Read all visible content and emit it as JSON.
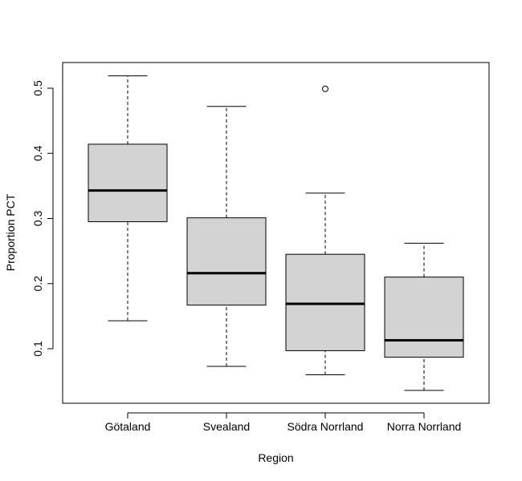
{
  "chart_data": {
    "type": "boxplot",
    "title": "",
    "xlabel": "Region",
    "ylabel": "Proportion PCT",
    "ylim": [
      0.02,
      0.53
    ],
    "y_ticks": [
      0.1,
      0.2,
      0.3,
      0.4,
      0.5
    ],
    "y_tick_labels": [
      "0.1",
      "0.2",
      "0.3",
      "0.4",
      "0.5"
    ],
    "categories": [
      "Götaland",
      "Svealand",
      "Södra Norrland",
      "Norra Norrland"
    ],
    "boxes": [
      {
        "whisker_low": 0.143,
        "q1": 0.295,
        "median": 0.343,
        "q3": 0.414,
        "whisker_high": 0.519,
        "outliers": []
      },
      {
        "whisker_low": 0.073,
        "q1": 0.167,
        "median": 0.216,
        "q3": 0.301,
        "whisker_high": 0.472,
        "outliers": []
      },
      {
        "whisker_low": 0.06,
        "q1": 0.097,
        "median": 0.169,
        "q3": 0.245,
        "whisker_high": 0.339,
        "outliers": [
          0.499
        ]
      },
      {
        "whisker_low": 0.036,
        "q1": 0.087,
        "median": 0.113,
        "q3": 0.21,
        "whisker_high": 0.262,
        "outliers": []
      }
    ],
    "colors": {
      "box_fill": "#d3d3d3",
      "stroke": "#000000"
    },
    "grid": false
  }
}
